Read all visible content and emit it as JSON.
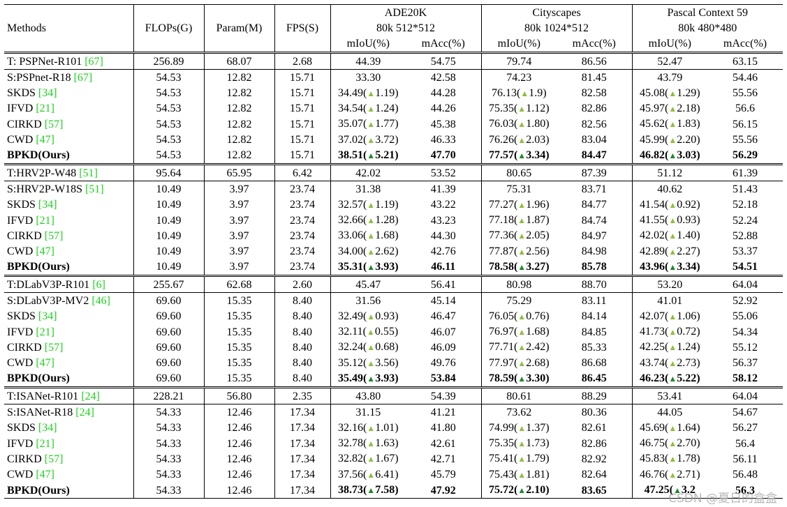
{
  "header": {
    "methods": "Methods",
    "flops": "FLOPs(G)",
    "param": "Param(M)",
    "fps": "FPS(S)",
    "datasets": [
      {
        "name": "ADE20K",
        "setting": "80k 512*512"
      },
      {
        "name": "Cityscapes",
        "setting": "80k 1024*512"
      },
      {
        "name": "Pascal Context 59",
        "setting": "80k 480*480"
      }
    ],
    "miou": "mIoU(%)",
    "macc": "mAcc(%)"
  },
  "blocks": [
    {
      "teacher": {
        "method": "T: PSPNet-R101 ",
        "ref": "[67]",
        "flops": "256.89",
        "param": "68.07",
        "fps": "2.68",
        "cells": [
          "44.39",
          "54.75",
          "79.74",
          "86.56",
          "52.47",
          "63.15"
        ]
      },
      "rows": [
        {
          "method": "S:PSPnet-R18 ",
          "ref": "[67]",
          "flops": "54.53",
          "param": "12.82",
          "fps": "15.71",
          "cells": [
            {
              "v": "33.30"
            },
            {
              "v": "42.58"
            },
            {
              "v": "74.23"
            },
            {
              "v": "81.45"
            },
            {
              "v": "43.79"
            },
            {
              "v": "54.46"
            }
          ]
        },
        {
          "method": "SKDS ",
          "ref": "[34]",
          "flops": "54.53",
          "param": "12.82",
          "fps": "15.71",
          "cells": [
            {
              "v": "34.49(",
              "d": "1.19)"
            },
            {
              "v": "44.28"
            },
            {
              "v": "76.13(",
              "d": "1.9)"
            },
            {
              "v": "82.58"
            },
            {
              "v": "45.08(",
              "d": "1.29)"
            },
            {
              "v": "55.56"
            }
          ]
        },
        {
          "method": "IFVD ",
          "ref": "[21]",
          "flops": "54.53",
          "param": "12.82",
          "fps": "15.71",
          "cells": [
            {
              "v": "34.54(",
              "d": "1.24)"
            },
            {
              "v": "44.26"
            },
            {
              "v": "75.35(",
              "d": "1.12)"
            },
            {
              "v": "82.86"
            },
            {
              "v": "45.97(",
              "d": "2.18)"
            },
            {
              "v": "56.6"
            }
          ]
        },
        {
          "method": "CIRKD ",
          "ref": "[57]",
          "flops": "54.53",
          "param": "12.82",
          "fps": "15.71",
          "cells": [
            {
              "v": "35.07(",
              "d": "1.77)"
            },
            {
              "v": "45.38"
            },
            {
              "v": "76.03(",
              "d": "1.80)"
            },
            {
              "v": "82.56"
            },
            {
              "v": "45.62(",
              "d": "1.83)"
            },
            {
              "v": "56.15"
            }
          ]
        },
        {
          "method": "CWD ",
          "ref": "[47]",
          "flops": "54.53",
          "param": "12.82",
          "fps": "15.71",
          "cells": [
            {
              "v": "37.02(",
              "d": "3.72)"
            },
            {
              "v": "46.33"
            },
            {
              "v": "76.26(",
              "d": "2.03)"
            },
            {
              "v": "83.04"
            },
            {
              "v": "45.99(",
              "d": "2.20)"
            },
            {
              "v": "55.56"
            }
          ]
        },
        {
          "method": "BPKD(Ours)",
          "ref": "",
          "bold": true,
          "flops": "54.53",
          "param": "12.82",
          "fps": "15.71",
          "cells": [
            {
              "v": "38.51(",
              "d": "5.21)"
            },
            {
              "v": "47.70"
            },
            {
              "v": "77.57(",
              "d": "3.34)"
            },
            {
              "v": "84.47"
            },
            {
              "v": "46.82(",
              "d": "3.03)"
            },
            {
              "v": "56.29"
            }
          ]
        }
      ]
    },
    {
      "teacher": {
        "method": "T:HRV2P-W48 ",
        "ref": "[51]",
        "flops": "95.64",
        "param": "65.95",
        "fps": "6.42",
        "cells": [
          "42.02",
          "53.52",
          "80.65",
          "87.39",
          "51.12",
          "61.39"
        ]
      },
      "rows": [
        {
          "method": "S:HRV2P-W18S ",
          "ref": "[51]",
          "flops": "10.49",
          "param": "3.97",
          "fps": "23.74",
          "cells": [
            {
              "v": "31.38"
            },
            {
              "v": "41.39"
            },
            {
              "v": "75.31"
            },
            {
              "v": "83.71"
            },
            {
              "v": "40.62"
            },
            {
              "v": "51.43"
            }
          ]
        },
        {
          "method": "SKDS ",
          "ref": "[34]",
          "flops": "10.49",
          "param": "3.97",
          "fps": "23.74",
          "cells": [
            {
              "v": "32.57(",
              "d": "1.19)"
            },
            {
              "v": "43.22"
            },
            {
              "v": "77.27(",
              "d": "1.96)"
            },
            {
              "v": "84.77"
            },
            {
              "v": "41.54(",
              "d": "0.92)"
            },
            {
              "v": "52.18"
            }
          ]
        },
        {
          "method": "IFVD ",
          "ref": "[21]",
          "flops": "10.49",
          "param": "3.97",
          "fps": "23.74",
          "cells": [
            {
              "v": "32.66(",
              "d": "1.28)"
            },
            {
              "v": "43.23"
            },
            {
              "v": "77.18(",
              "d": "1.87)"
            },
            {
              "v": "84.74"
            },
            {
              "v": "41.55(",
              "d": "0.93)"
            },
            {
              "v": "52.24"
            }
          ]
        },
        {
          "method": "CIRKD ",
          "ref": "[57]",
          "flops": "10.49",
          "param": "3.97",
          "fps": "23.74",
          "cells": [
            {
              "v": "33.06(",
              "d": "1.68)"
            },
            {
              "v": "44.30"
            },
            {
              "v": "77.36(",
              "d": "2.05)"
            },
            {
              "v": "84.97"
            },
            {
              "v": "42.02(",
              "d": "1.40)"
            },
            {
              "v": "52.88"
            }
          ]
        },
        {
          "method": "CWD ",
          "ref": "[47]",
          "flops": "10.49",
          "param": "3.97",
          "fps": "23.74",
          "cells": [
            {
              "v": "34.00(",
              "d": "2.62)"
            },
            {
              "v": "42.76"
            },
            {
              "v": "77.87(",
              "d": "2.56)"
            },
            {
              "v": "84.98"
            },
            {
              "v": "42.89(",
              "d": "2.27)"
            },
            {
              "v": "53.37"
            }
          ]
        },
        {
          "method": "BPKD(Ours)",
          "ref": "",
          "bold": true,
          "flops": "10.49",
          "param": "3.97",
          "fps": "23.74",
          "cells": [
            {
              "v": "35.31(",
              "d": "3.93)"
            },
            {
              "v": "46.11"
            },
            {
              "v": "78.58(",
              "d": "3.27)"
            },
            {
              "v": "85.78"
            },
            {
              "v": "43.96(",
              "d": "3.34)"
            },
            {
              "v": "54.51"
            }
          ]
        }
      ]
    },
    {
      "teacher": {
        "method": "T:DLabV3P-R101 ",
        "ref": "[6]",
        "flops": "255.67",
        "param": "62.68",
        "fps": "2.60",
        "cells": [
          "45.47",
          "56.41",
          "80.98",
          "88.70",
          "53.20",
          "64.04"
        ]
      },
      "rows": [
        {
          "method": "S:DLabV3P-MV2 ",
          "ref": "[46]",
          "flops": "69.60",
          "param": "15.35",
          "fps": "8.40",
          "cells": [
            {
              "v": "31.56"
            },
            {
              "v": "45.14"
            },
            {
              "v": "75.29"
            },
            {
              "v": "83.11"
            },
            {
              "v": "41.01"
            },
            {
              "v": "52.92"
            }
          ]
        },
        {
          "method": "SKDS ",
          "ref": "[34]",
          "flops": "69.60",
          "param": "15.35",
          "fps": "8.40",
          "cells": [
            {
              "v": "32.49(",
              "d": "0.93)"
            },
            {
              "v": "46.47"
            },
            {
              "v": "76.05(",
              "d": "0.76)"
            },
            {
              "v": "84.14"
            },
            {
              "v": "42.07(",
              "d": "1.06)"
            },
            {
              "v": "55.06"
            }
          ]
        },
        {
          "method": "IFVD ",
          "ref": "[21]",
          "flops": "69.60",
          "param": "15.35",
          "fps": "8.40",
          "cells": [
            {
              "v": "32.11(",
              "d": "0.55)"
            },
            {
              "v": "46.07"
            },
            {
              "v": "76.97(",
              "d": "1.68)"
            },
            {
              "v": "84.85"
            },
            {
              "v": "41.73(",
              "d": "0.72)"
            },
            {
              "v": "54.34"
            }
          ]
        },
        {
          "method": "CIRKD ",
          "ref": "[57]",
          "flops": "69.60",
          "param": "15.35",
          "fps": "8.40",
          "cells": [
            {
              "v": "32.24(",
              "d": "0.68)"
            },
            {
              "v": "46.09"
            },
            {
              "v": "77.71(",
              "d": "2.42)"
            },
            {
              "v": "85.33"
            },
            {
              "v": "42.25(",
              "d": "1.24)"
            },
            {
              "v": "55.12"
            }
          ]
        },
        {
          "method": "CWD ",
          "ref": "[47]",
          "flops": "69.60",
          "param": "15.35",
          "fps": "8.40",
          "cells": [
            {
              "v": "35.12(",
              "d": "3.56)"
            },
            {
              "v": "49.76"
            },
            {
              "v": "77.97(",
              "d": "2.68)"
            },
            {
              "v": "86.68"
            },
            {
              "v": "43.74(",
              "d": "2.73)"
            },
            {
              "v": "56.37"
            }
          ]
        },
        {
          "method": "BPKD(Ours)",
          "ref": "",
          "bold": true,
          "flops": "69.60",
          "param": "15.35",
          "fps": "8.40",
          "cells": [
            {
              "v": "35.49(",
              "d": "3.93)"
            },
            {
              "v": "53.84"
            },
            {
              "v": "78.59(",
              "d": "3.30)"
            },
            {
              "v": "86.45"
            },
            {
              "v": "46.23(",
              "d": "5.22)"
            },
            {
              "v": "58.12"
            }
          ]
        }
      ]
    },
    {
      "teacher": {
        "method": "T:ISANet-R101 ",
        "ref": "[24]",
        "flops": "228.21",
        "param": "56.80",
        "fps": "2.35",
        "cells": [
          "43.80",
          "54.39",
          "80.61",
          "88.29",
          "53.41",
          "64.04"
        ]
      },
      "rows": [
        {
          "method": "S:ISANet-R18 ",
          "ref": "[24]",
          "flops": "54.33",
          "param": "12.46",
          "fps": "17.34",
          "cells": [
            {
              "v": "31.15"
            },
            {
              "v": "41.21"
            },
            {
              "v": "73.62"
            },
            {
              "v": "80.36"
            },
            {
              "v": "44.05"
            },
            {
              "v": "54.67"
            }
          ]
        },
        {
          "method": "SKDS ",
          "ref": "[34]",
          "flops": "54.33",
          "param": "12.46",
          "fps": "17.34",
          "cells": [
            {
              "v": "32.16(",
              "d": "1.01)"
            },
            {
              "v": "41.80"
            },
            {
              "v": "74.99(",
              "d": "1.37)"
            },
            {
              "v": "82.61"
            },
            {
              "v": "45.69(",
              "d": "1.64)"
            },
            {
              "v": "56.27"
            }
          ]
        },
        {
          "method": "IFVD ",
          "ref": "[21]",
          "flops": "54.33",
          "param": "12.46",
          "fps": "17.34",
          "cells": [
            {
              "v": "32.78(",
              "d": "1.63)"
            },
            {
              "v": "42.61"
            },
            {
              "v": "75.35(",
              "d": "1.73)"
            },
            {
              "v": "82.86"
            },
            {
              "v": "46.75(",
              "d": "2.70)"
            },
            {
              "v": "56.4"
            }
          ]
        },
        {
          "method": "CIRKD ",
          "ref": "[57]",
          "flops": "54.33",
          "param": "12.46",
          "fps": "17.34",
          "cells": [
            {
              "v": "32.82(",
              "d": "1.67)"
            },
            {
              "v": "42.71"
            },
            {
              "v": "75.41(",
              "d": "1.79)"
            },
            {
              "v": "82.92"
            },
            {
              "v": "45.83(",
              "d": "1.78)"
            },
            {
              "v": "56.11"
            }
          ]
        },
        {
          "method": "CWD ",
          "ref": "[47]",
          "flops": "54.33",
          "param": "12.46",
          "fps": "17.34",
          "cells": [
            {
              "v": "37.56(",
              "d": "6.41)"
            },
            {
              "v": "45.79"
            },
            {
              "v": "75.43(",
              "d": "1.81)"
            },
            {
              "v": "82.64"
            },
            {
              "v": "46.76(",
              "d": "2.71)"
            },
            {
              "v": "56.48"
            }
          ]
        },
        {
          "method": "BPKD(Ours)",
          "ref": "",
          "bold": true,
          "flops": "54.33",
          "param": "12.46",
          "fps": "17.34",
          "cells": [
            {
              "v": "38.73(",
              "d": "7.58)"
            },
            {
              "v": "47.92"
            },
            {
              "v": "75.72(",
              "d": "2.10)"
            },
            {
              "v": "83.65"
            },
            {
              "v": "47.25(",
              "d": "3.2"
            },
            {
              "v": "56.3"
            }
          ]
        }
      ]
    }
  ],
  "watermark": "CSDN @夏日的盒盒",
  "colors": {
    "ref": "#1fd11f",
    "triangle": "#8fbf3a",
    "triangle_bold": "#1d8a2a"
  }
}
